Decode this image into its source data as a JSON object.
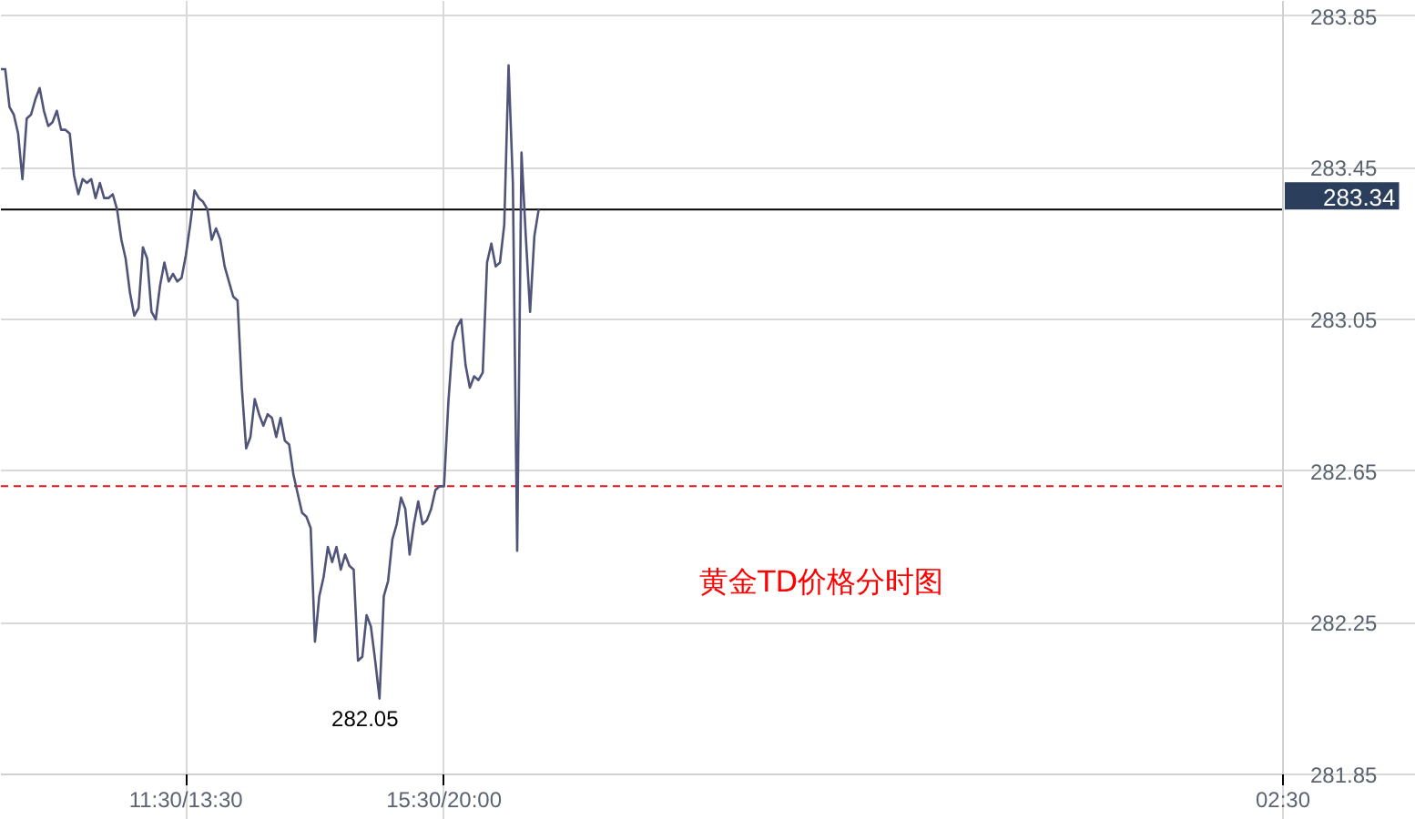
{
  "chart_data": {
    "type": "line",
    "color": "#4f5478",
    "annotations": [
      "黄金TD价格分时图",
      "282.05"
    ],
    "categories": [
      null,
      null,
      null,
      null,
      null,
      null,
      null,
      null,
      null,
      null,
      null,
      null,
      null,
      null,
      null,
      null,
      null,
      null,
      null,
      null,
      null,
      null,
      null,
      null,
      null,
      null,
      null,
      null,
      null,
      null,
      null,
      null,
      null,
      null,
      null,
      null,
      null,
      null,
      null,
      null,
      null,
      null,
      null,
      "11:30/13:30",
      null,
      null,
      null,
      null,
      null,
      null,
      null,
      null,
      null,
      null,
      null,
      null,
      null,
      null,
      null,
      null,
      null,
      null,
      null,
      null,
      null,
      null,
      null,
      null,
      null,
      null,
      null,
      null,
      null,
      null,
      null,
      null,
      null,
      null,
      null,
      null,
      null,
      null,
      null,
      null,
      null,
      null,
      null,
      null,
      null,
      null,
      null,
      null,
      null,
      null,
      null,
      null,
      null,
      null,
      null,
      null,
      null,
      null,
      null,
      "15:30/20:00",
      null,
      null,
      null,
      null,
      null,
      null,
      null,
      null,
      null,
      null,
      null,
      null,
      null,
      null,
      null,
      null,
      null,
      null,
      null,
      null,
      null,
      null,
      null,
      null,
      null,
      null,
      null,
      null,
      null,
      null,
      null,
      null,
      null,
      null,
      null,
      null,
      null,
      null,
      null,
      null,
      null,
      null,
      null,
      null,
      null,
      null,
      null,
      null,
      null,
      null,
      null,
      null,
      null,
      null,
      null,
      null,
      null,
      null,
      null,
      null,
      null,
      null,
      null,
      null,
      null,
      null,
      null,
      null,
      null,
      null,
      null,
      null,
      null,
      null,
      null,
      null,
      null,
      null,
      null,
      null,
      null,
      null,
      null,
      null,
      null,
      null,
      null,
      null,
      null,
      null,
      null,
      null,
      null,
      null,
      null,
      null,
      null,
      null,
      null,
      null,
      null,
      null,
      null,
      null,
      null,
      null,
      null,
      null,
      null,
      null,
      null,
      null,
      null,
      null,
      null,
      null,
      null,
      null,
      null,
      null,
      null,
      null,
      null,
      null,
      null,
      null,
      null,
      null,
      null,
      null,
      null,
      null,
      null,
      null,
      null,
      null,
      null,
      null,
      null,
      null,
      null,
      null,
      null,
      null,
      null,
      null,
      null,
      null,
      null,
      null,
      null,
      null,
      null,
      null,
      null,
      null,
      null,
      null,
      null,
      null,
      null,
      null,
      null,
      null,
      null,
      null,
      null,
      null,
      null,
      null,
      null,
      null,
      null,
      null,
      null,
      null,
      null,
      null,
      null,
      null,
      null,
      null,
      null,
      null,
      null,
      null,
      null,
      null,
      null,
      null,
      null,
      null,
      null,
      null,
      "02:30"
    ],
    "values": [
      283.71,
      283.71,
      283.61,
      283.59,
      283.54,
      283.42,
      283.58,
      283.59,
      283.63,
      283.66,
      283.6,
      283.56,
      283.57,
      283.6,
      283.55,
      283.55,
      283.54,
      283.43,
      283.38,
      283.42,
      283.41,
      283.42,
      283.37,
      283.41,
      283.37,
      283.37,
      283.38,
      283.34,
      283.26,
      283.21,
      283.12,
      283.06,
      283.08,
      283.24,
      283.21,
      283.07,
      283.05,
      283.14,
      283.2,
      283.15,
      283.17,
      283.15,
      283.16,
      283.22,
      283.3,
      283.39,
      283.37,
      283.36,
      283.34,
      283.26,
      283.29,
      283.26,
      283.19,
      283.15,
      283.11,
      283.1,
      282.87,
      282.71,
      282.74,
      282.84,
      282.8,
      282.77,
      282.8,
      282.79,
      282.74,
      282.79,
      282.73,
      282.72,
      282.64,
      282.59,
      282.54,
      282.53,
      282.5,
      282.2,
      282.32,
      282.37,
      282.45,
      282.41,
      282.45,
      282.39,
      282.43,
      282.4,
      282.39,
      282.15,
      282.16,
      282.27,
      282.24,
      282.15,
      282.05,
      282.32,
      282.36,
      282.47,
      282.51,
      282.58,
      282.55,
      282.43,
      282.51,
      282.57,
      282.51,
      282.52,
      282.55,
      282.6,
      282.61,
      282.61,
      282.83,
      282.99,
      283.03,
      283.05,
      282.93,
      282.87,
      282.9,
      282.89,
      282.91,
      283.2,
      283.25,
      283.19,
      283.2,
      283.3,
      283.72,
      283.41,
      282.44,
      283.49,
      283.27,
      283.07,
      283.27,
      283.34,
      null,
      null,
      null,
      null,
      null,
      null,
      null,
      null,
      null,
      null,
      null,
      null,
      null,
      null,
      null,
      null,
      null,
      null,
      null,
      null,
      null,
      null,
      null,
      null,
      null,
      null,
      null,
      null,
      null,
      null,
      null,
      null,
      null,
      null,
      null,
      null,
      null,
      null,
      null,
      null,
      null,
      null,
      null,
      null,
      null,
      null,
      null,
      null,
      null,
      null,
      null,
      null,
      null,
      null,
      null,
      null,
      null,
      null,
      null,
      null,
      null,
      null,
      null,
      null,
      null,
      null,
      null,
      null,
      null,
      null,
      null,
      null,
      null,
      null,
      null,
      null,
      null,
      null,
      null,
      null,
      null,
      null,
      null,
      null,
      null,
      null,
      null,
      null,
      null,
      null,
      null,
      null,
      null,
      null,
      null,
      null,
      null,
      null,
      null,
      null,
      null,
      null,
      null,
      null,
      null,
      null,
      null,
      null,
      null,
      null,
      null,
      null,
      null,
      null,
      null,
      null,
      null,
      null,
      null,
      null,
      null,
      null,
      null,
      null,
      null,
      null,
      null,
      null,
      null,
      null,
      null,
      null,
      null,
      null,
      null,
      null,
      null,
      null,
      null,
      null,
      null,
      null,
      null,
      null,
      null,
      null,
      null,
      null,
      null,
      null,
      null,
      null,
      null,
      null,
      null,
      null,
      null,
      null,
      null,
      null,
      null,
      null,
      null,
      null,
      null,
      null,
      null,
      null,
      null,
      null,
      null,
      null,
      null
    ],
    "ylim": [
      281.85,
      283.89
    ],
    "yticks": [
      281.85,
      282.25,
      282.65,
      283.05,
      283.45,
      283.85
    ],
    "grid": true,
    "ref_lines": [
      {
        "axis": "y",
        "value": 283.34,
        "label": "283.34",
        "color": "#000000",
        "line_style": "solid"
      },
      {
        "axis": "y",
        "value": 282.61,
        "color": "#e8141c",
        "line_style": "dashed"
      }
    ]
  }
}
